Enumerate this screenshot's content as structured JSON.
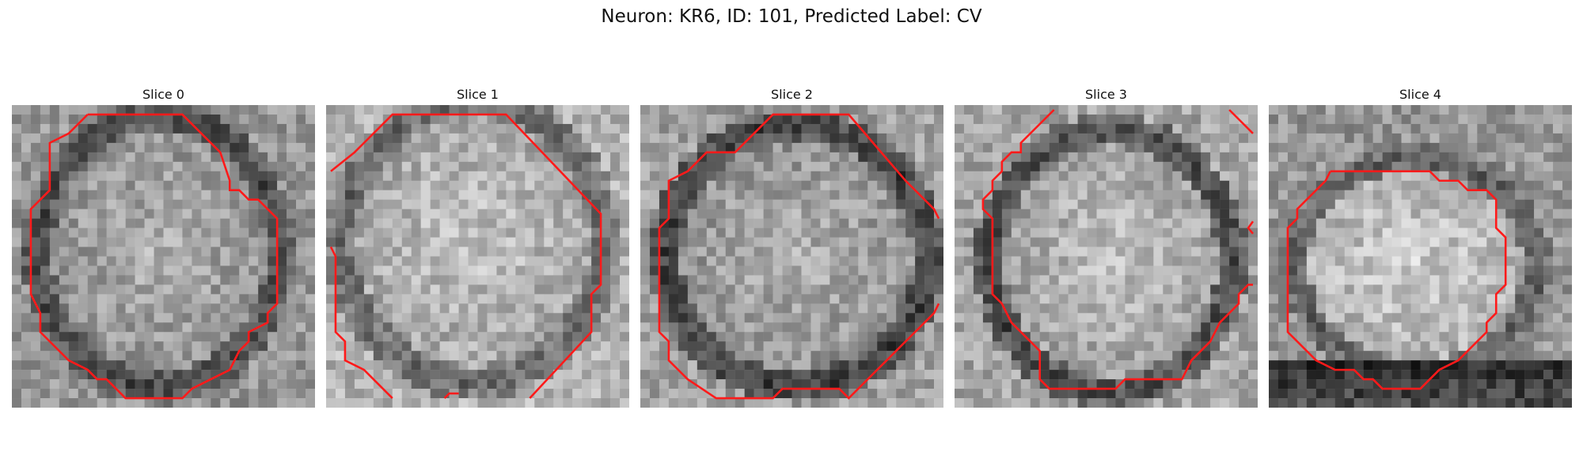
{
  "figure": {
    "title": "Neuron: KR6, ID: 101, Predicted Label: CV"
  },
  "panels": [
    {
      "title": "Slice 0"
    },
    {
      "title": "Slice 1"
    },
    {
      "title": "Slice 2"
    },
    {
      "title": "Slice 3"
    },
    {
      "title": "Slice 4"
    }
  ],
  "colors": {
    "contour": "#ff1a1a",
    "background": "#ffffff"
  }
}
